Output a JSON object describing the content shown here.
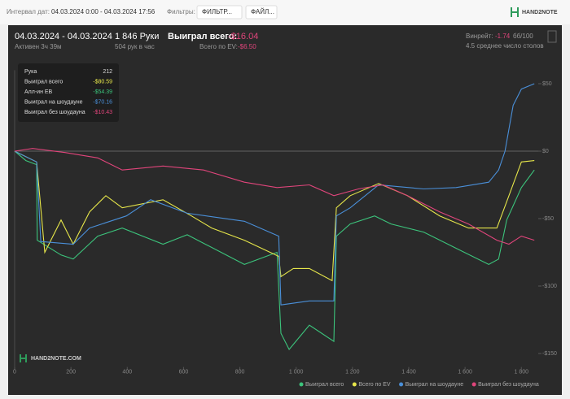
{
  "header": {
    "date_label": "Интервал дат:",
    "date_range": "04.03.2024 0:00 - 04.03.2024 17:56",
    "filters_label": "Фильтры:",
    "filter_button": "ФИЛЬТР...",
    "file_button": "ФАЙЛ...",
    "logo": "HAND2NOTE"
  },
  "stats": {
    "period": "04.03.2024 - 04.03.2024",
    "active": "Активен 3ч 39м",
    "hands": "1 846 Руки",
    "rate": "504 рук в час",
    "won_label": "Выиграл всего:",
    "won_value": "-$16.04",
    "ev_label": "Всего по EV:",
    "ev_value": "-$6.50",
    "winrate_label": "Винрейт:",
    "winrate_value": "-1.74",
    "winrate_unit": "бб/100",
    "tables": "4.5 среднее число столов"
  },
  "tooltip": {
    "rows": [
      [
        "Рука",
        "212"
      ],
      [
        "Выиграл всего",
        "-$80.59"
      ],
      [
        "Алл-ин EB",
        "-$54.39"
      ],
      [
        "Выиграл на шоудауне",
        "-$70.16"
      ],
      [
        "Выиграл без шоудауна",
        "-$10.43"
      ]
    ]
  },
  "watermark": "HAND2NOTE.COM",
  "chart_data": {
    "type": "line",
    "xlim": [
      0,
      1860
    ],
    "ylim": [
      -160,
      60
    ],
    "xticks": [
      0,
      200,
      400,
      600,
      800,
      {
        "value": 1000,
        "label": "1 000"
      },
      {
        "value": 1200,
        "label": "1 200"
      },
      {
        "value": 1400,
        "label": "1 400"
      },
      {
        "value": 1600,
        "label": "1 600"
      },
      {
        "value": 1800,
        "label": "1 800"
      }
    ],
    "yticks": [
      {
        "value": 50,
        "label": "$50"
      },
      {
        "value": 0,
        "label": "$0"
      },
      {
        "value": -50,
        "label": "-$50"
      },
      {
        "value": -100,
        "label": "-$100"
      },
      {
        "value": -150,
        "label": "-$150"
      }
    ],
    "series": [
      {
        "name": "Выиграл всего",
        "color": "#3cc47c",
        "x": [
          0,
          40,
          78,
          80,
          165,
          208,
          295,
          382,
          527,
          613,
          816,
          932,
          946,
          975,
          1047,
          1134,
          1143,
          1192,
          1279,
          1337,
          1453,
          1568,
          1684,
          1719,
          1748,
          1800,
          1846
        ],
        "values": [
          0,
          -7,
          -10,
          -66,
          -77,
          -80,
          -63,
          -57,
          -69,
          -62,
          -84,
          -75,
          -135,
          -147,
          -129,
          -141,
          -63,
          -54,
          -48,
          -54,
          -60,
          -72,
          -84,
          -80,
          -51,
          -27,
          -14
        ]
      },
      {
        "name": "Всего по EV",
        "color": "#e6e64a",
        "x": [
          0,
          78,
          107,
          165,
          208,
          266,
          324,
          382,
          527,
          628,
          700,
          816,
          938,
          946,
          990,
          1047,
          1128,
          1143,
          1192,
          1293,
          1395,
          1510,
          1612,
          1713,
          1756,
          1800,
          1846
        ],
        "values": [
          0,
          -8,
          -75,
          -51,
          -69,
          -45,
          -33,
          -42,
          -36,
          -48,
          -57,
          -66,
          -78,
          -93,
          -87,
          -87,
          -96,
          -42,
          -33,
          -24,
          -33,
          -48,
          -57,
          -57,
          -33,
          -8,
          -7
        ]
      },
      {
        "name": "Выиграл на шоудауне",
        "color": "#4a8fd8",
        "x": [
          0,
          78,
          93,
          208,
          266,
          397,
          483,
          613,
          816,
          938,
          946,
          1047,
          1134,
          1143,
          1192,
          1293,
          1453,
          1568,
          1684,
          1719,
          1742,
          1771,
          1800,
          1846
        ],
        "values": [
          0,
          -8,
          -67,
          -69,
          -57,
          -48,
          -36,
          -46,
          -52,
          -63,
          -114,
          -111,
          -111,
          -48,
          -42,
          -25,
          -28,
          -27,
          -23,
          -14,
          0,
          34,
          46,
          50
        ]
      },
      {
        "name": "Выиграл без шоудауна",
        "color": "#e0457b",
        "x": [
          0,
          64,
          179,
          295,
          382,
          527,
          671,
          816,
          932,
          1047,
          1134,
          1221,
          1308,
          1395,
          1510,
          1612,
          1713,
          1756,
          1800,
          1846
        ],
        "values": [
          0,
          2,
          -1,
          -5,
          -14,
          -11,
          -14,
          -23,
          -27,
          -25,
          -33,
          -28,
          -25,
          -33,
          -45,
          -54,
          -66,
          -69,
          -63,
          -66
        ]
      }
    ]
  }
}
